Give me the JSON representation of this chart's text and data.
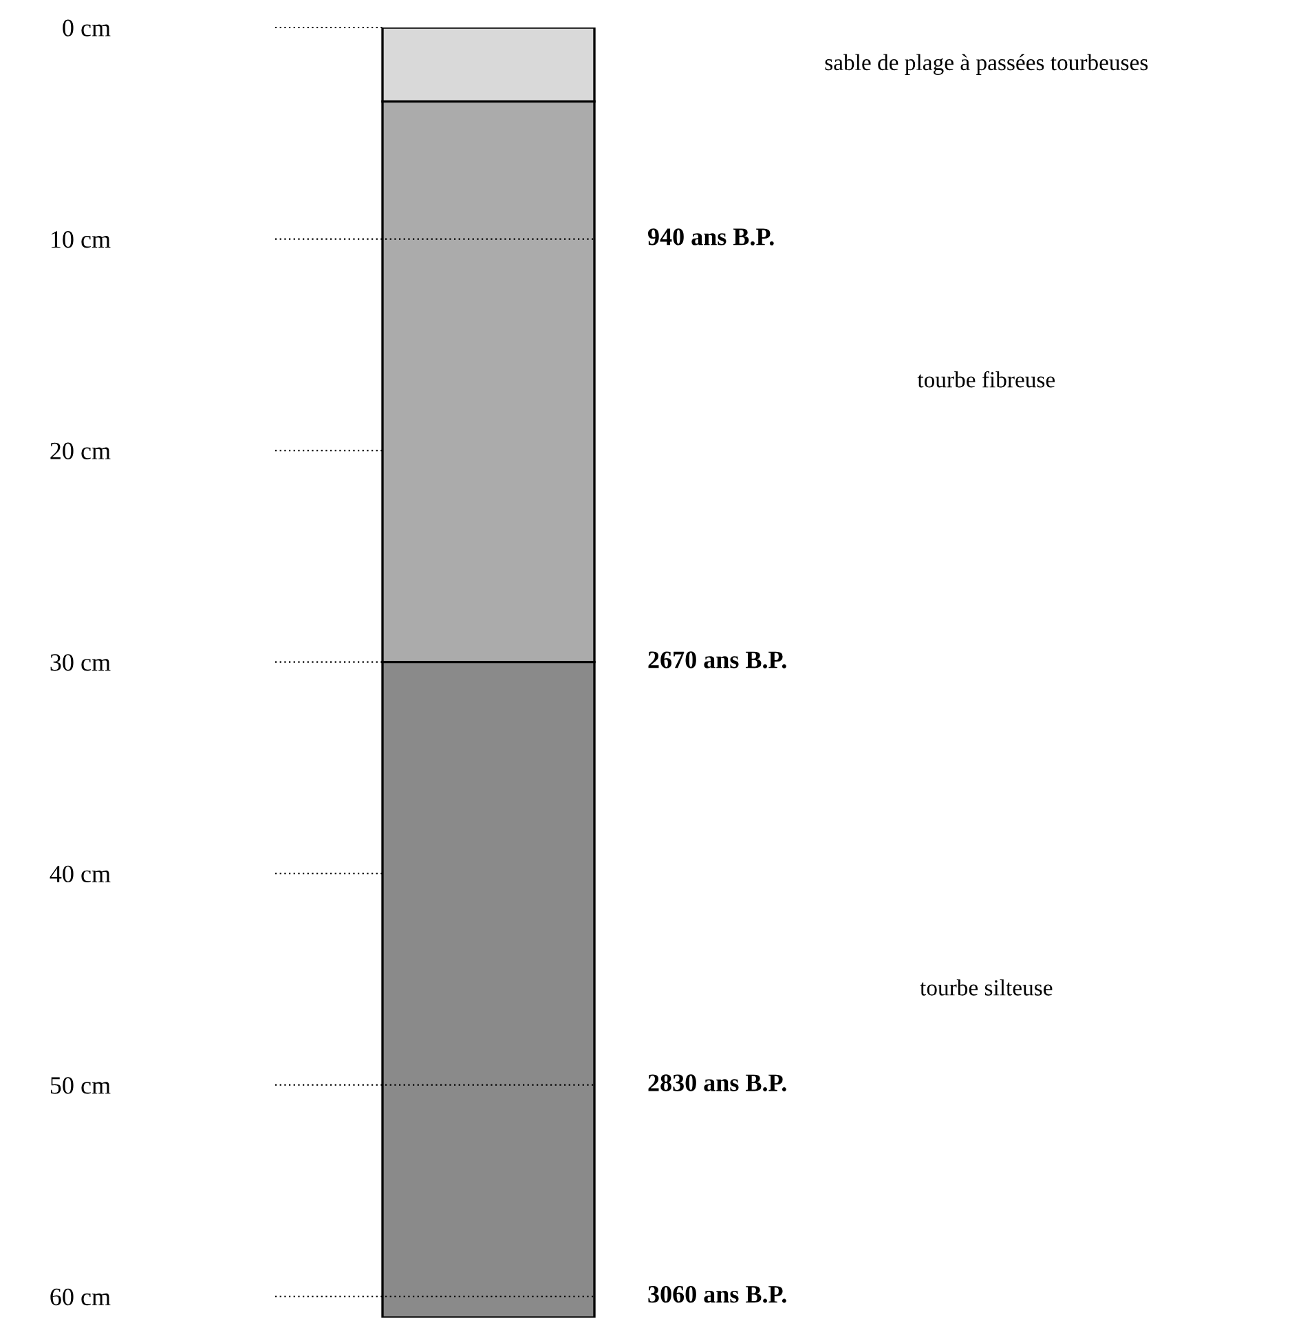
{
  "chart_data": {
    "type": "bar",
    "stacked": true,
    "categories": [
      null
    ],
    "series": [
      {
        "name": "sable de plage à passées tourbeuses",
        "color": "#d9d9d9",
        "values": [
          3.5
        ]
      },
      {
        "name": "tourbe fibreuse",
        "color": "#ababab",
        "values": [
          26.5
        ]
      },
      {
        "name": "tourbe silteuse",
        "color": "#8a8a8a",
        "values": [
          31
        ]
      }
    ],
    "ylim": [
      61,
      0
    ],
    "yticks": [
      {
        "value": 0,
        "label": "0 cm"
      },
      {
        "value": 10,
        "label": "10 cm"
      },
      {
        "value": 20,
        "label": "20 cm"
      },
      {
        "value": 30,
        "label": "30 cm"
      },
      {
        "value": 40,
        "label": "40 cm"
      },
      {
        "value": 50,
        "label": "50 cm"
      },
      {
        "value": 60,
        "label": "60 cm"
      }
    ],
    "ref_lines": [
      {
        "axis": "y",
        "value": 10,
        "label": "940 ans B.P.",
        "line_style": "dotted"
      },
      {
        "axis": "y",
        "value": 30,
        "label": "2670 ans B.P.",
        "line_style": "dotted"
      },
      {
        "axis": "y",
        "value": 50,
        "label": "2830 ans B.P.",
        "line_style": "dotted"
      },
      {
        "axis": "y",
        "value": 60,
        "label": "3060 ans B.P.",
        "line_style": "dotted"
      }
    ],
    "grid": false,
    "legend": false
  }
}
